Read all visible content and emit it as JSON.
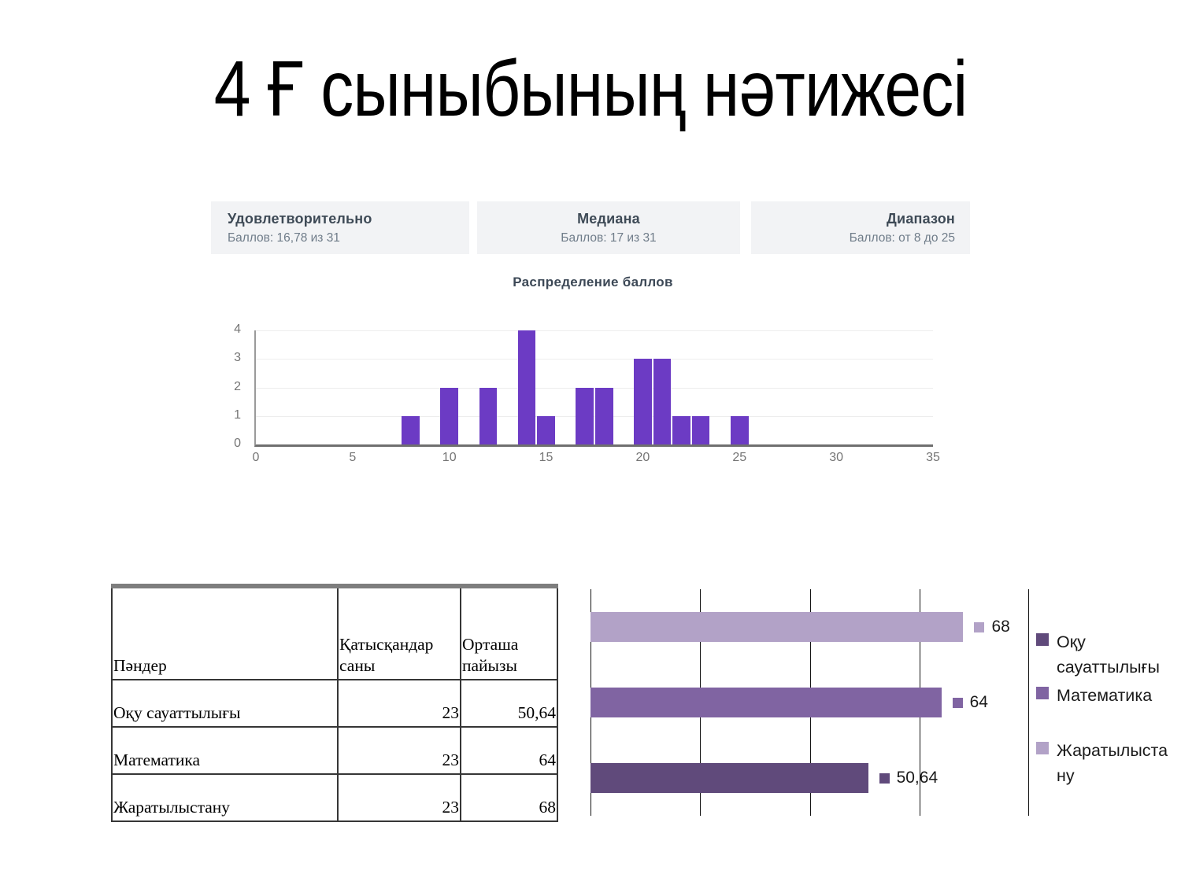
{
  "slide": {
    "title": "4 Ғ сыныбының нәтижесі"
  },
  "stats_cards": [
    {
      "name": "average",
      "title": "Удовлетворительно",
      "subtitle": "Баллов: 16,78 из 31"
    },
    {
      "name": "median",
      "title": "Медиана",
      "subtitle": "Баллов: 17 из 31"
    },
    {
      "name": "range",
      "title": "Диапазон",
      "subtitle": "Баллов: от 8 до 25"
    }
  ],
  "chart_data": [
    {
      "type": "bar",
      "subtype": "histogram",
      "title": "Распределение баллов",
      "x": [
        8,
        10,
        12,
        14,
        15,
        17,
        18,
        20,
        21,
        22,
        23,
        25
      ],
      "values": [
        1,
        2,
        2,
        4,
        1,
        2,
        2,
        3,
        3,
        1,
        1,
        1
      ],
      "xlabel": "",
      "ylabel": "",
      "xlim": [
        0,
        35
      ],
      "ylim": [
        0,
        4
      ],
      "x_ticks": [
        0,
        5,
        10,
        15,
        20,
        25,
        30,
        35
      ],
      "y_ticks": [
        0,
        1,
        2,
        3,
        4
      ],
      "bar_color": "#6C3BC4",
      "grid": "horizontal-light"
    },
    {
      "type": "bar",
      "orientation": "horizontal",
      "title": "",
      "xlim": [
        0,
        80
      ],
      "gridline_step": 20,
      "grid": "vertical",
      "legend_position": "right",
      "series": [
        {
          "name": "Оқу сауаттылығы",
          "value": 50.64,
          "label": "50,64",
          "color": "#604A7B",
          "legend_lines": [
            "Оқу",
            "сауаттылығы"
          ]
        },
        {
          "name": "Математика",
          "value": 64,
          "label": "64",
          "color": "#8064A2",
          "legend_lines": [
            "Математика"
          ]
        },
        {
          "name": "Жаратылыстану",
          "value": 68,
          "label": "68",
          "color": "#B2A2C7",
          "legend_lines": [
            "Жаратылыста",
            "ну"
          ]
        }
      ],
      "row_order_top_to_bottom": [
        "Жаратылыстану",
        "Математика",
        "Оқу сауаттылығы"
      ]
    },
    {
      "type": "table",
      "columns": [
        "Пәндер",
        "Қатысқандар саны",
        "Орташа пайызы"
      ],
      "rows": [
        [
          "Оқу сауаттылығы",
          "23",
          "50,64"
        ],
        [
          "Математика",
          "23",
          "64"
        ],
        [
          "Жаратылыстану",
          "23",
          "68"
        ]
      ]
    }
  ]
}
